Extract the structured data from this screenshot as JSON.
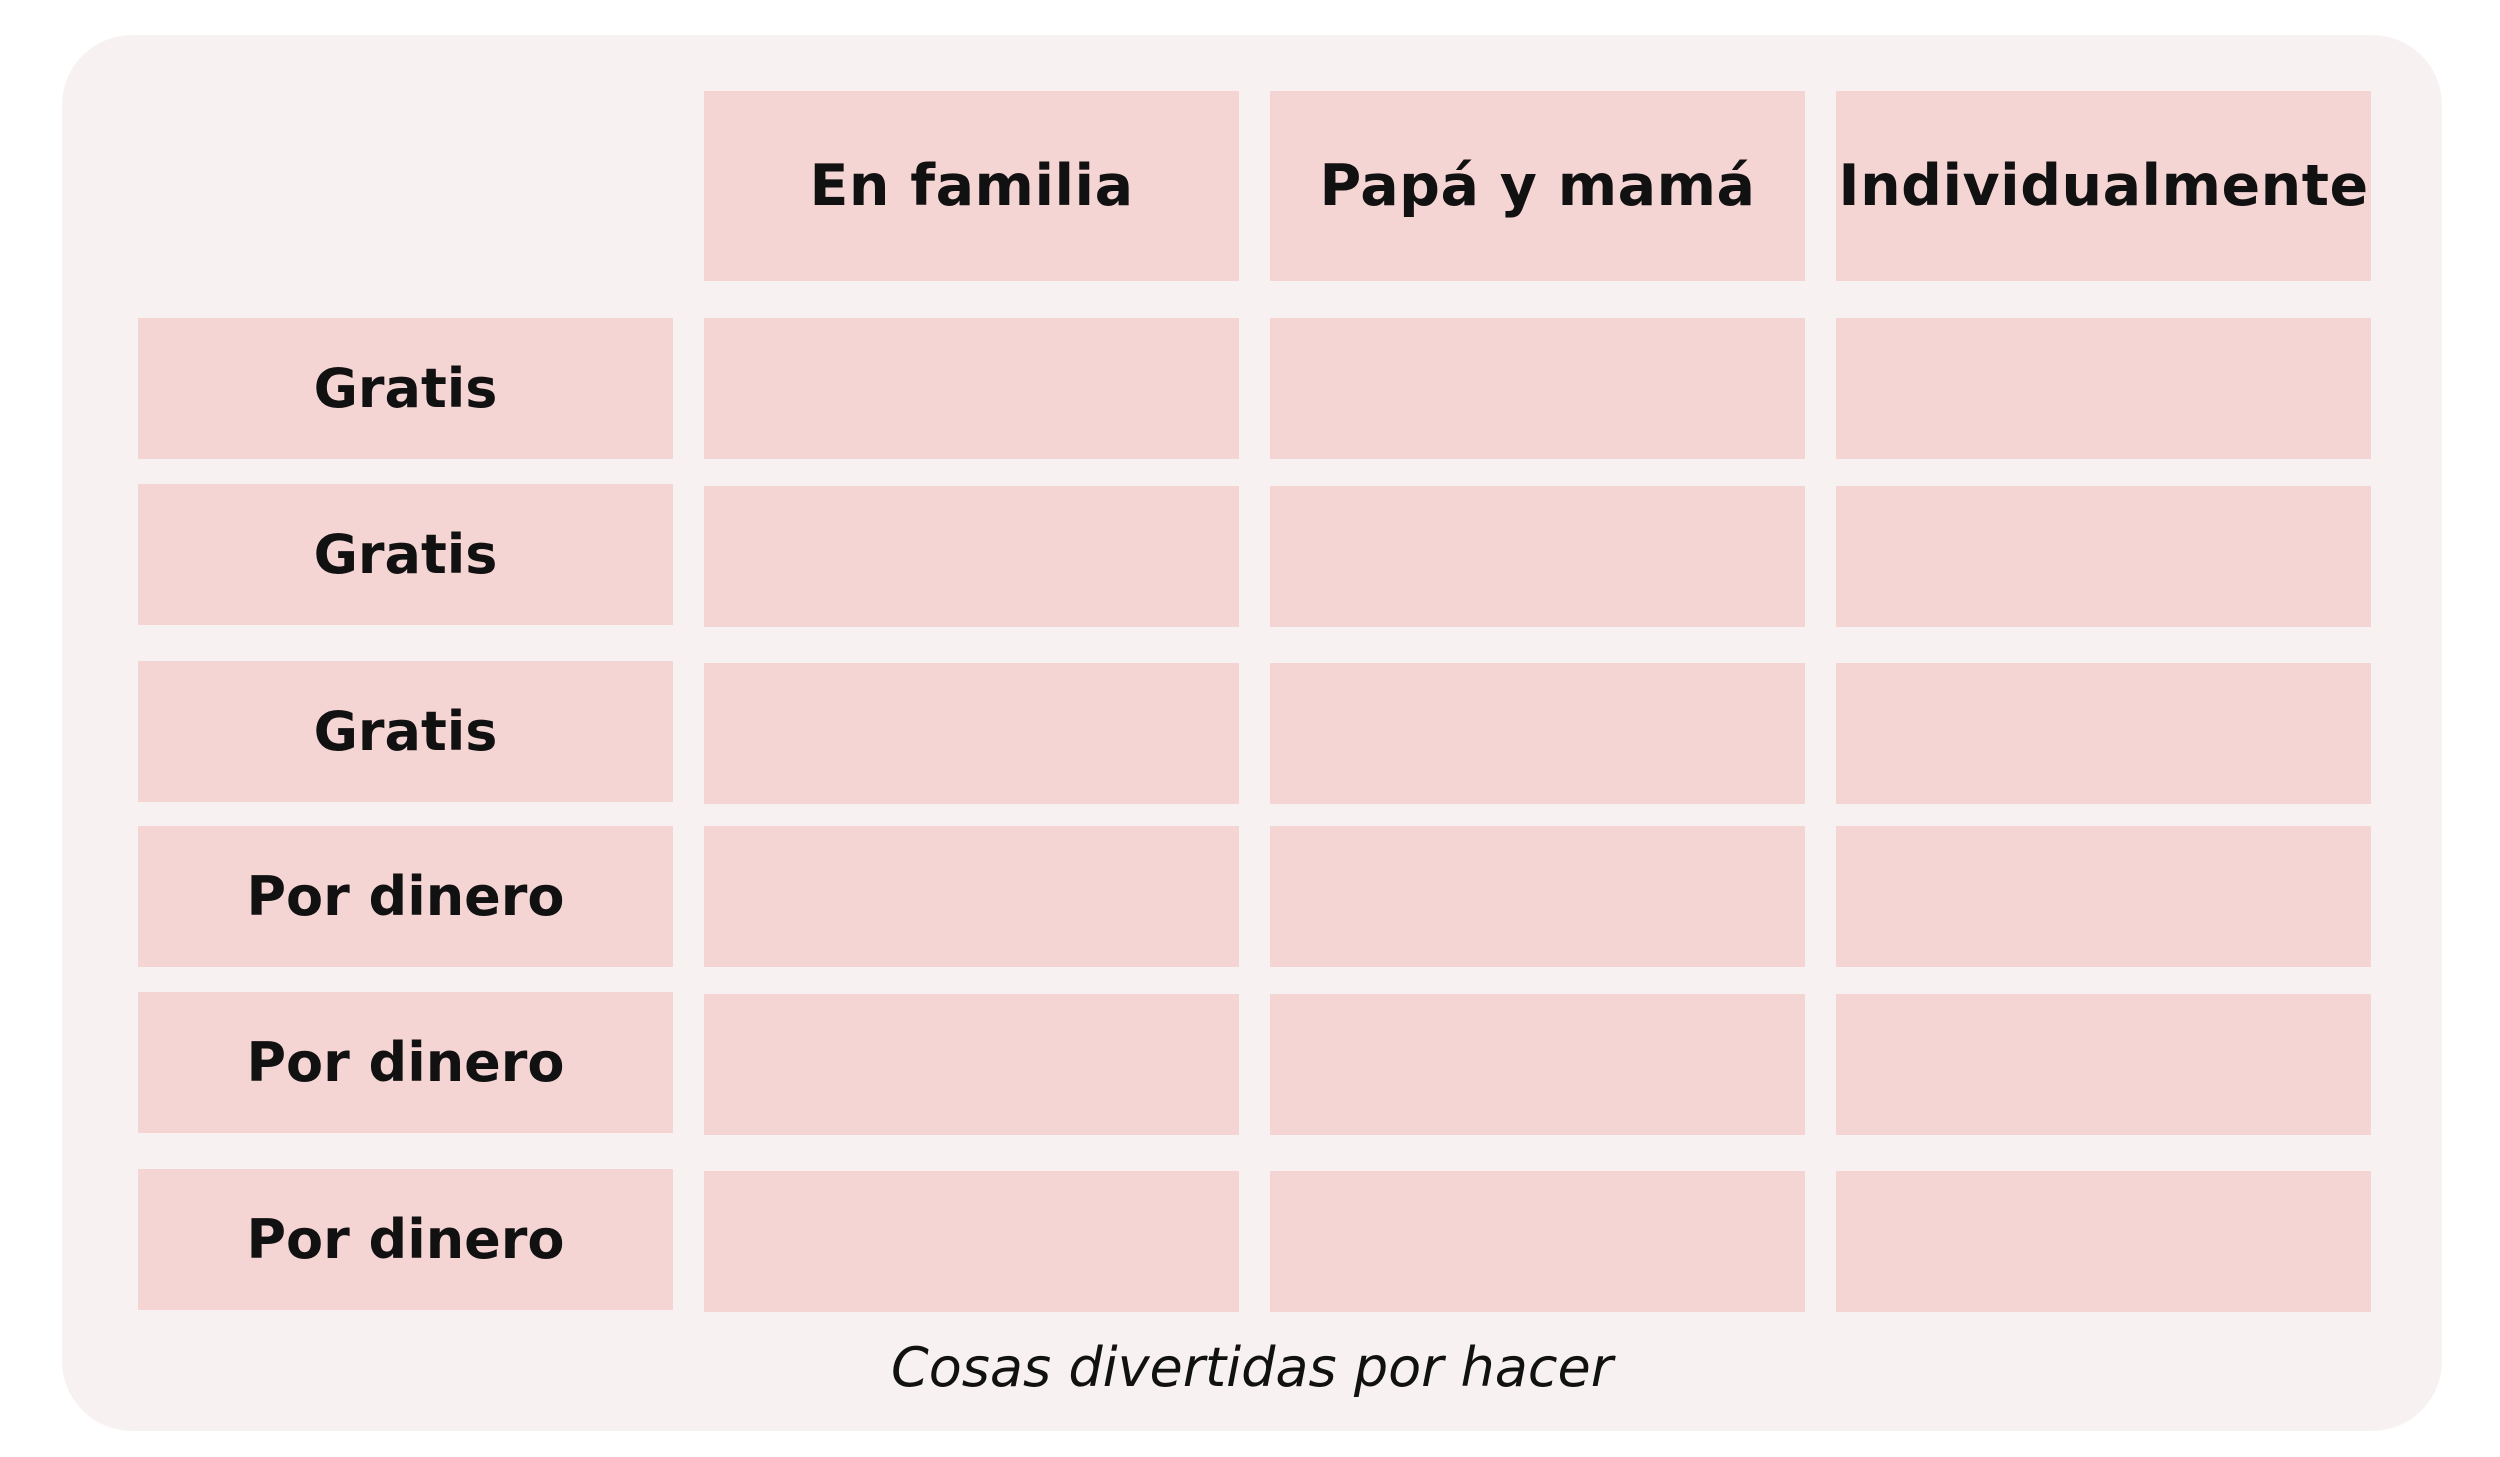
{
  "table": {
    "columns": [
      "En familia",
      "Papá y mamá",
      "Individualmente"
    ],
    "rows": [
      {
        "label": "Gratis",
        "cells": [
          "",
          "",
          ""
        ]
      },
      {
        "label": "Gratis",
        "cells": [
          "",
          "",
          ""
        ]
      },
      {
        "label": "Gratis",
        "cells": [
          "",
          "",
          ""
        ]
      },
      {
        "label": "Por dinero",
        "cells": [
          "",
          "",
          ""
        ]
      },
      {
        "label": "Por dinero",
        "cells": [
          "",
          "",
          ""
        ]
      },
      {
        "label": "Por dinero",
        "cells": [
          "",
          "",
          ""
        ]
      }
    ],
    "caption": "Cosas divertidas por hacer"
  },
  "colors": {
    "panel_background": "#f8f1f1",
    "cell_fill": "#f5d4d4",
    "text": "#111111"
  }
}
